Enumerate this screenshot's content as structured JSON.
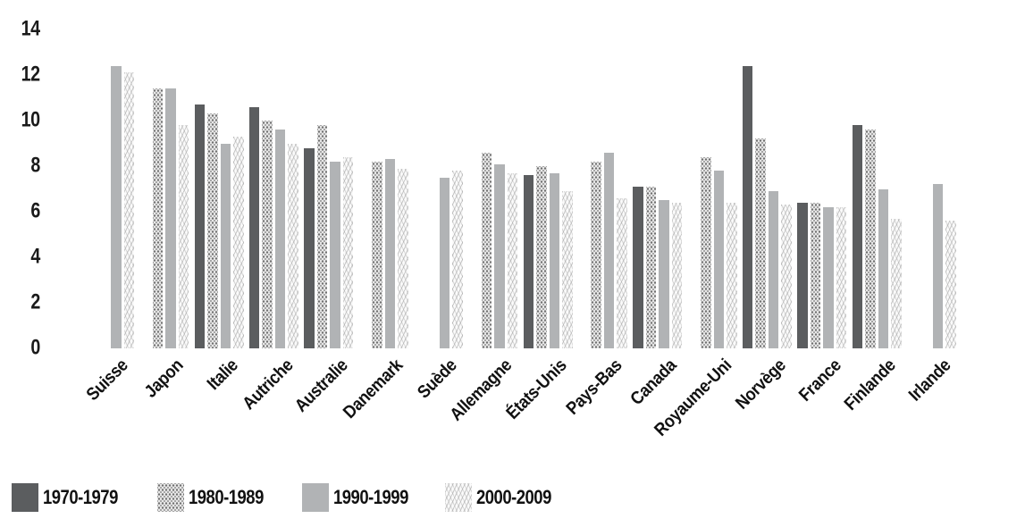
{
  "chart_data": {
    "type": "bar",
    "title": "",
    "xlabel": "",
    "ylabel": "",
    "categories": [
      "Suisse",
      "Japon",
      "Italie",
      "Autriche",
      "Australie",
      "Danemark",
      "Suède",
      "Allemagne",
      "États-Unis",
      "Pays-Bas",
      "Canada",
      "Royaume-Uni",
      "Norvège",
      "France",
      "Finlande",
      "Irlande"
    ],
    "series": [
      {
        "name": "1970-1979",
        "pattern": "solid-dark",
        "color": "#5b5d5f",
        "values": [
          null,
          null,
          10.7,
          10.6,
          8.8,
          null,
          null,
          null,
          7.6,
          null,
          7.1,
          null,
          12.4,
          6.4,
          9.8,
          null
        ]
      },
      {
        "name": "1980-1989",
        "pattern": "dotted",
        "color": "#8f8f8f",
        "values": [
          null,
          11.4,
          10.3,
          10.0,
          9.8,
          8.2,
          null,
          8.6,
          8.0,
          8.2,
          7.1,
          8.4,
          9.2,
          6.4,
          9.6,
          null
        ]
      },
      {
        "name": "1990-1999",
        "pattern": "solid-light",
        "color": "#b1b3b5",
        "values": [
          12.4,
          11.4,
          9.0,
          9.6,
          8.2,
          8.3,
          7.5,
          8.1,
          7.7,
          8.6,
          6.5,
          7.8,
          6.9,
          6.2,
          7.0,
          7.2
        ]
      },
      {
        "name": "2000-2009",
        "pattern": "diagonal-hatch",
        "color": "#e9e9e9",
        "values": [
          12.1,
          9.8,
          9.3,
          9.0,
          8.4,
          7.9,
          7.8,
          7.7,
          6.9,
          6.6,
          6.4,
          6.4,
          6.3,
          6.2,
          5.7,
          5.6
        ]
      }
    ],
    "y_ticks": [
      14,
      12,
      10,
      8,
      6,
      4,
      2,
      0
    ],
    "ylim": [
      0,
      14
    ],
    "grid": false,
    "legend_position": "bottom-left"
  }
}
